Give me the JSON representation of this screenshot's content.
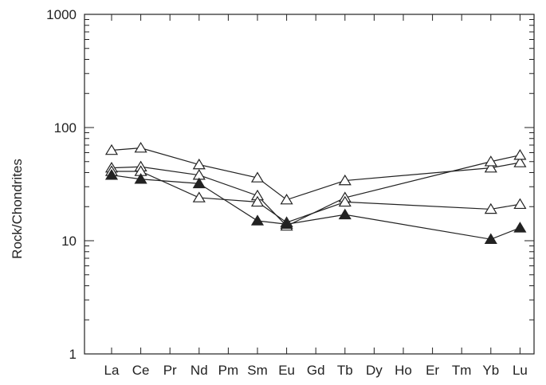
{
  "colors": {
    "ink": "#222222",
    "background": "#ffffff"
  },
  "chart_data": {
    "type": "line",
    "title": "",
    "xlabel": "",
    "ylabel": "Rock/Chondrites",
    "y_scale": "log",
    "ylim": [
      1,
      1000
    ],
    "y_ticks": [
      {
        "value": 1,
        "label": "1"
      },
      {
        "value": 10,
        "label": "10"
      },
      {
        "value": 100,
        "label": "100"
      },
      {
        "value": 1000,
        "label": "1000"
      }
    ],
    "categories": [
      "La",
      "Ce",
      "Pr",
      "Nd",
      "Pm",
      "Sm",
      "Eu",
      "Gd",
      "Tb",
      "Dy",
      "Ho",
      "Er",
      "Tm",
      "Yb",
      "Lu"
    ],
    "grid": false,
    "legend": "none",
    "series": [
      {
        "marker": "open-triangle",
        "points": [
          {
            "category": "La",
            "value": 63
          },
          {
            "category": "Ce",
            "value": 66
          },
          {
            "category": "Nd",
            "value": 47
          },
          {
            "category": "Sm",
            "value": 36
          },
          {
            "category": "Eu",
            "value": 23
          },
          {
            "category": "Tb",
            "value": 34
          },
          {
            "category": "Yb",
            "value": 44
          },
          {
            "category": "Lu",
            "value": 49
          }
        ]
      },
      {
        "marker": "open-triangle",
        "points": [
          {
            "category": "La",
            "value": 44
          },
          {
            "category": "Ce",
            "value": 45
          },
          {
            "category": "Nd",
            "value": 38
          },
          {
            "category": "Sm",
            "value": 25
          },
          {
            "category": "Eu",
            "value": 13.5
          },
          {
            "category": "Tb",
            "value": 24
          },
          {
            "category": "Yb",
            "value": 50
          },
          {
            "category": "Lu",
            "value": 57
          }
        ]
      },
      {
        "marker": "open-triangle",
        "points": [
          {
            "category": "La",
            "value": 41
          },
          {
            "category": "Ce",
            "value": 41
          },
          {
            "category": "Nd",
            "value": 24
          },
          {
            "category": "Sm",
            "value": 22
          },
          {
            "category": "Eu",
            "value": 14.5
          },
          {
            "category": "Tb",
            "value": 22
          },
          {
            "category": "Yb",
            "value": 19
          },
          {
            "category": "Lu",
            "value": 21
          }
        ]
      },
      {
        "marker": "filled-triangle",
        "points": [
          {
            "category": "La",
            "value": 38
          },
          {
            "category": "Ce",
            "value": 35
          },
          {
            "category": "Nd",
            "value": 32
          },
          {
            "category": "Sm",
            "value": 15
          },
          {
            "category": "Eu",
            "value": 14
          },
          {
            "category": "Tb",
            "value": 17
          },
          {
            "category": "Yb",
            "value": 10.3
          },
          {
            "category": "Lu",
            "value": 13
          }
        ]
      }
    ]
  }
}
